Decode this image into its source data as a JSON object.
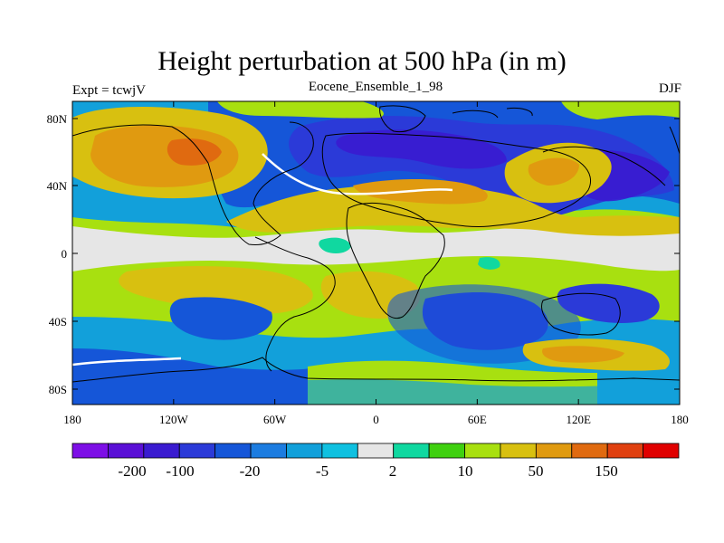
{
  "title": "Height perturbation at 500 hPa (in m)",
  "left_label": "Expt = tcwjV",
  "center_label": "Eocene_Ensemble_1_98",
  "right_label": "DJF",
  "lat_ticks": [
    "80N",
    "40N",
    "0",
    "40S",
    "80S"
  ],
  "lon_ticks": [
    "180",
    "120W",
    "60W",
    "0",
    "60E",
    "120E",
    "180"
  ],
  "colorbar": {
    "colors": [
      "#7d0fe6",
      "#5a10d6",
      "#3a1bd0",
      "#2b3ad8",
      "#1556d8",
      "#1c7ce0",
      "#12a0da",
      "#0fc0e0",
      "#e6e6e6",
      "#10d8a0",
      "#3fd010",
      "#a8e010",
      "#d8c010",
      "#e09a10",
      "#e06a10",
      "#e04010",
      "#e00000"
    ],
    "labels": [
      "-200",
      "-100",
      "-20",
      "-5",
      "2",
      "10",
      "50",
      "150"
    ]
  }
}
